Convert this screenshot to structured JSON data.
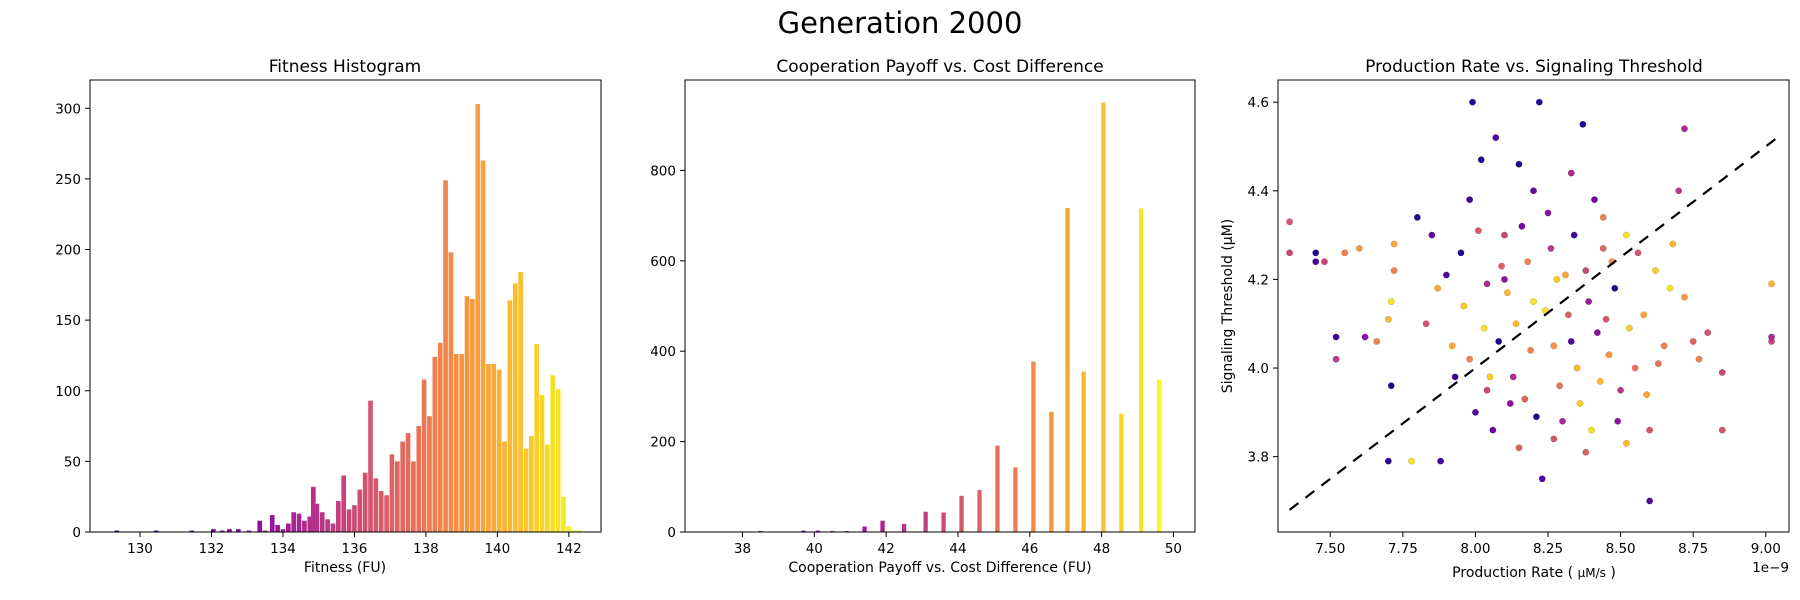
{
  "suptitle": "Generation 2000",
  "chart_data": [
    {
      "type": "bar",
      "title": "Fitness Histogram",
      "xlabel": "Fitness (FU)",
      "ylabel": "",
      "xlim": [
        128.6,
        142.9
      ],
      "ylim": [
        0,
        320
      ],
      "xticks": [
        130,
        132,
        134,
        136,
        138,
        140,
        142
      ],
      "yticks": [
        0,
        50,
        100,
        150,
        200,
        250,
        300
      ],
      "bar_width": 0.13,
      "colormap": "plasma",
      "x": [
        129.35,
        130.45,
        131.45,
        132.05,
        132.3,
        132.5,
        132.75,
        133.05,
        133.35,
        133.5,
        133.7,
        133.85,
        134.0,
        134.15,
        134.3,
        134.45,
        134.6,
        134.75,
        134.85,
        134.95,
        135.1,
        135.25,
        135.4,
        135.55,
        135.7,
        135.85,
        136.0,
        136.15,
        136.3,
        136.45,
        136.6,
        136.75,
        136.9,
        137.05,
        137.2,
        137.35,
        137.5,
        137.65,
        137.8,
        137.95,
        138.1,
        138.25,
        138.4,
        138.55,
        138.7,
        138.85,
        139.0,
        139.15,
        139.3,
        139.45,
        139.6,
        139.75,
        139.9,
        140.05,
        140.2,
        140.35,
        140.5,
        140.65,
        140.8,
        140.95,
        141.1,
        141.25,
        141.4,
        141.55,
        141.7,
        141.85,
        142.0,
        142.15,
        142.3
      ],
      "values": [
        1,
        1,
        1,
        2,
        1,
        2,
        2,
        1,
        8,
        1,
        12,
        5,
        2,
        6,
        14,
        13,
        8,
        11,
        32,
        20,
        14,
        9,
        6,
        22,
        40,
        16,
        19,
        30,
        42,
        93,
        38,
        29,
        26,
        55,
        50,
        64,
        70,
        50,
        75,
        108,
        82,
        124,
        134,
        249,
        198,
        126,
        126,
        167,
        165,
        303,
        263,
        119,
        119,
        115,
        64,
        164,
        176,
        184,
        59,
        68,
        133,
        97,
        62,
        111,
        101,
        25,
        4,
        1,
        1
      ]
    },
    {
      "type": "bar",
      "title": "Cooperation Payoff vs. Cost Difference",
      "xlabel": "Cooperation Payoff vs. Cost Difference (FU)",
      "ylabel": "",
      "xlim": [
        36.4,
        50.6
      ],
      "ylim": [
        0,
        1000
      ],
      "xticks": [
        38,
        40,
        42,
        44,
        46,
        48,
        50
      ],
      "yticks": [
        0,
        200,
        400,
        600,
        800
      ],
      "bar_width": 0.12,
      "colormap": "plasma",
      "x": [
        37.1,
        37.7,
        38.5,
        39.2,
        39.7,
        40.1,
        40.5,
        40.9,
        41.4,
        41.9,
        42.5,
        43.1,
        43.6,
        44.1,
        44.6,
        45.1,
        45.6,
        46.1,
        46.6,
        47.05,
        47.5,
        48.05,
        48.55,
        49.1,
        49.6
      ],
      "values": [
        1,
        1,
        2,
        1,
        3,
        3,
        2,
        2,
        12,
        25,
        18,
        45,
        43,
        80,
        93,
        191,
        143,
        377,
        266,
        717,
        355,
        950,
        262,
        716,
        337
      ]
    },
    {
      "type": "scatter",
      "title": "Production Rate vs. Signaling Threshold",
      "xlabel": "Production Rate",
      "xlabel_unit": "µM/s",
      "ylabel": "Signaling Threshold (µM)",
      "offset_text": "1e−9",
      "xlim": [
        7.32,
        9.08
      ],
      "ylim": [
        3.63,
        4.65
      ],
      "xticks": [
        7.5,
        7.75,
        8.0,
        8.25,
        8.5,
        8.75,
        9.0
      ],
      "xticklabels": [
        "7.50",
        "7.75",
        "8.00",
        "8.25",
        "8.50",
        "8.75",
        "9.00"
      ],
      "yticks": [
        3.8,
        4.0,
        4.2,
        4.4,
        4.6
      ],
      "yticklabels": [
        "3.8",
        "4.0",
        "4.2",
        "4.4",
        "4.6"
      ],
      "colormap": "plasma",
      "trend_line": {
        "x": [
          7.36,
          9.04
        ],
        "y": [
          3.68,
          4.52
        ],
        "style": "dashed",
        "color": "#000000"
      },
      "points": [
        [
          7.36,
          4.33,
          0.55
        ],
        [
          7.36,
          4.26,
          0.5
        ],
        [
          7.45,
          4.26,
          0.05
        ],
        [
          7.45,
          4.24,
          0.1
        ],
        [
          7.48,
          4.24,
          0.5
        ],
        [
          7.52,
          4.07,
          0.1
        ],
        [
          7.52,
          4.02,
          0.45
        ],
        [
          7.55,
          4.26,
          0.7
        ],
        [
          7.62,
          4.07,
          0.3
        ],
        [
          7.66,
          4.06,
          0.7
        ],
        [
          7.7,
          4.11,
          0.85
        ],
        [
          7.71,
          4.15,
          0.95
        ],
        [
          7.72,
          4.22,
          0.7
        ],
        [
          7.72,
          4.28,
          0.8
        ],
        [
          7.71,
          3.96,
          0.05
        ],
        [
          7.7,
          3.79,
          0.05
        ],
        [
          7.78,
          3.79,
          0.95
        ],
        [
          7.8,
          4.34,
          0.05
        ],
        [
          7.85,
          4.3,
          0.2
        ],
        [
          7.88,
          3.79,
          0.1
        ],
        [
          7.9,
          4.21,
          0.15
        ],
        [
          7.92,
          4.05,
          0.8
        ],
        [
          7.95,
          4.26,
          0.05
        ],
        [
          7.98,
          4.38,
          0.1
        ],
        [
          7.99,
          4.6,
          0.05
        ],
        [
          8.0,
          3.9,
          0.15
        ],
        [
          8.02,
          4.47,
          0.05
        ],
        [
          8.04,
          4.19,
          0.4
        ],
        [
          8.05,
          3.98,
          0.9
        ],
        [
          8.07,
          4.52,
          0.15
        ],
        [
          8.08,
          4.06,
          0.05
        ],
        [
          8.1,
          4.3,
          0.5
        ],
        [
          8.12,
          3.92,
          0.3
        ],
        [
          8.14,
          4.1,
          0.85
        ],
        [
          8.15,
          4.46,
          0.05
        ],
        [
          8.17,
          3.93,
          0.6
        ],
        [
          8.18,
          4.24,
          0.7
        ],
        [
          8.2,
          4.15,
          0.95
        ],
        [
          8.22,
          4.6,
          0.05
        ],
        [
          8.23,
          3.75,
          0.15
        ],
        [
          8.25,
          4.35,
          0.3
        ],
        [
          8.27,
          4.05,
          0.75
        ],
        [
          8.28,
          4.2,
          0.9
        ],
        [
          8.3,
          3.88,
          0.4
        ],
        [
          8.32,
          4.12,
          0.6
        ],
        [
          8.34,
          4.3,
          0.1
        ],
        [
          8.35,
          4.0,
          0.85
        ],
        [
          8.37,
          4.55,
          0.05
        ],
        [
          8.38,
          4.22,
          0.5
        ],
        [
          8.4,
          3.86,
          0.95
        ],
        [
          8.42,
          4.08,
          0.3
        ],
        [
          8.44,
          4.27,
          0.6
        ],
        [
          8.46,
          4.03,
          0.75
        ],
        [
          8.48,
          4.18,
          0.05
        ],
        [
          8.5,
          3.95,
          0.45
        ],
        [
          8.52,
          4.3,
          0.95
        ],
        [
          8.55,
          4.0,
          0.65
        ],
        [
          8.58,
          4.12,
          0.8
        ],
        [
          8.6,
          3.7,
          0.15
        ],
        [
          8.6,
          3.86,
          0.55
        ],
        [
          8.62,
          4.22,
          0.9
        ],
        [
          8.65,
          4.05,
          0.7
        ],
        [
          8.68,
          4.28,
          0.85
        ],
        [
          8.7,
          4.4,
          0.45
        ],
        [
          8.72,
          4.54,
          0.4
        ],
        [
          8.72,
          4.16,
          0.75
        ],
        [
          8.75,
          4.06,
          0.6
        ],
        [
          8.77,
          4.02,
          0.7
        ],
        [
          8.8,
          4.08,
          0.55
        ],
        [
          8.85,
          3.99,
          0.5
        ],
        [
          8.85,
          3.86,
          0.55
        ],
        [
          9.02,
          4.06,
          0.5
        ],
        [
          9.02,
          4.07,
          0.4
        ],
        [
          9.02,
          4.19,
          0.85
        ],
        [
          7.6,
          4.27,
          0.75
        ],
        [
          7.83,
          4.1,
          0.55
        ],
        [
          7.87,
          4.18,
          0.8
        ],
        [
          7.93,
          3.98,
          0.1
        ],
        [
          7.96,
          4.14,
          0.9
        ],
        [
          8.01,
          4.31,
          0.55
        ],
        [
          8.03,
          4.09,
          0.95
        ],
        [
          8.06,
          3.86,
          0.2
        ],
        [
          8.09,
          4.23,
          0.6
        ],
        [
          8.11,
          4.17,
          0.85
        ],
        [
          8.13,
          3.98,
          0.4
        ],
        [
          8.16,
          4.32,
          0.25
        ],
        [
          8.19,
          4.04,
          0.7
        ],
        [
          8.21,
          3.89,
          0.05
        ],
        [
          8.24,
          4.13,
          0.95
        ],
        [
          8.26,
          4.27,
          0.45
        ],
        [
          8.29,
          3.96,
          0.65
        ],
        [
          8.31,
          4.21,
          0.8
        ],
        [
          8.33,
          4.06,
          0.15
        ],
        [
          8.36,
          3.92,
          0.9
        ],
        [
          8.39,
          4.15,
          0.35
        ],
        [
          8.41,
          4.38,
          0.2
        ],
        [
          8.43,
          3.97,
          0.85
        ],
        [
          8.45,
          4.11,
          0.55
        ],
        [
          8.47,
          4.24,
          0.75
        ],
        [
          8.49,
          3.88,
          0.3
        ],
        [
          8.53,
          4.09,
          0.9
        ],
        [
          8.56,
          4.26,
          0.55
        ],
        [
          8.59,
          3.94,
          0.8
        ],
        [
          8.63,
          4.01,
          0.65
        ],
        [
          8.67,
          4.18,
          0.95
        ],
        [
          7.98,
          4.02,
          0.7
        ],
        [
          8.04,
          3.95,
          0.5
        ],
        [
          8.1,
          4.2,
          0.3
        ],
        [
          8.15,
          3.82,
          0.6
        ],
        [
          8.2,
          4.4,
          0.2
        ],
        [
          8.27,
          3.84,
          0.55
        ],
        [
          8.33,
          4.44,
          0.4
        ],
        [
          8.38,
          3.81,
          0.6
        ],
        [
          8.44,
          4.34,
          0.7
        ],
        [
          8.52,
          3.83,
          0.85
        ]
      ]
    }
  ]
}
